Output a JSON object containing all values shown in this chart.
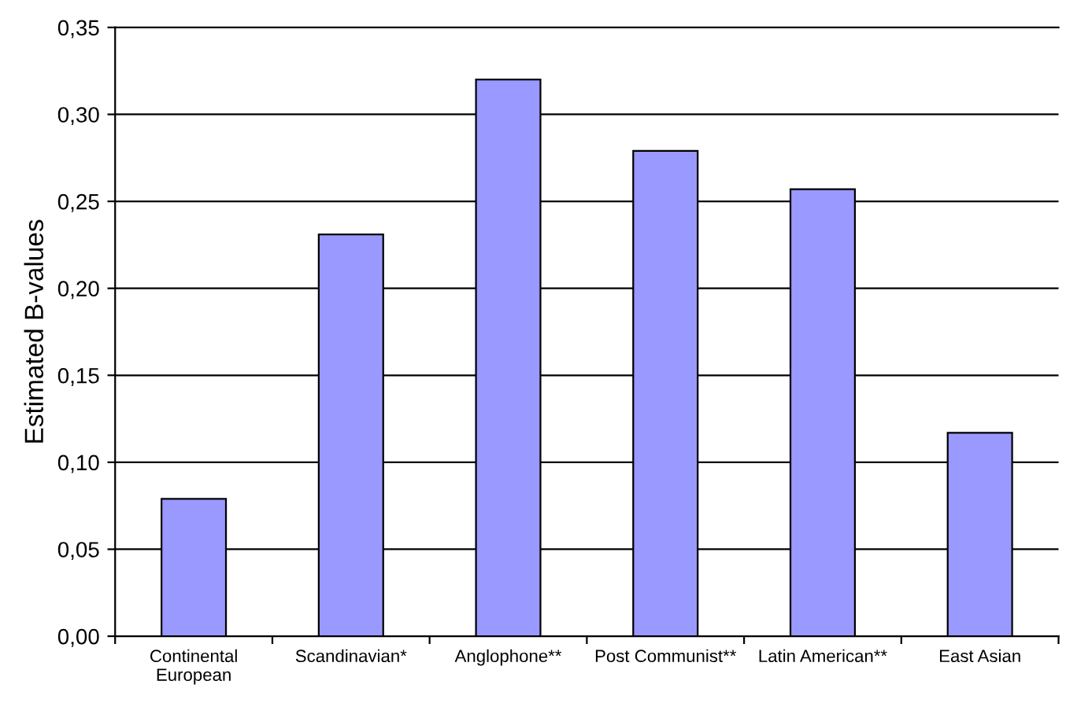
{
  "chart_data": {
    "type": "bar",
    "ylabel": "Estimated B-values",
    "categories": [
      "Continental\nEuropean",
      "Scandinavian*",
      "Anglophone**",
      "Post Communist**",
      "Latin American**",
      "East Asian"
    ],
    "values": [
      0.079,
      0.231,
      0.32,
      0.279,
      0.257,
      0.117
    ],
    "color": "#9999ff",
    "ylim": [
      0,
      0.35
    ],
    "yticks": [
      {
        "value": 0,
        "label": "0,00"
      },
      {
        "value": 0.05,
        "label": "0,05"
      },
      {
        "value": 0.1,
        "label": "0,10"
      },
      {
        "value": 0.15,
        "label": "0,15"
      },
      {
        "value": 0.2,
        "label": "0,20"
      },
      {
        "value": 0.25,
        "label": "0,25"
      },
      {
        "value": 0.3,
        "label": "0,30"
      },
      {
        "value": 0.35,
        "label": "0,35"
      }
    ],
    "grid": "y"
  }
}
